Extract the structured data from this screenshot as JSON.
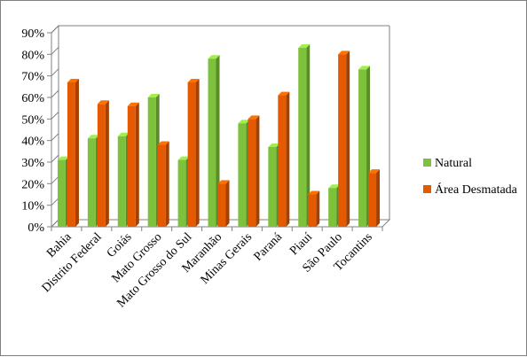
{
  "chart_data": {
    "type": "bar",
    "categories": [
      "Bahia",
      "Distrito Federal",
      "Goiás",
      "Mato Grosso",
      "Mato Grosso do Sul",
      "Maranhão",
      "Minas Gerais",
      "Paraná",
      "Piauí",
      "São Paulo",
      "Tocantins"
    ],
    "series": [
      {
        "name": "Natural",
        "color": "#7ec13c",
        "values": [
          31,
          41,
          42,
          60,
          31,
          78,
          48,
          37,
          83,
          18,
          73
        ]
      },
      {
        "name": "Área Desmatada",
        "color": "#e55a00",
        "values": [
          67,
          57,
          56,
          38,
          67,
          20,
          50,
          61,
          15,
          80,
          25
        ]
      }
    ],
    "yticks": [
      "0%",
      "10%",
      "20%",
      "30%",
      "40%",
      "50%",
      "60%",
      "70%",
      "80%",
      "90%"
    ],
    "ylim": [
      0,
      90
    ],
    "legend_position": "right",
    "grid": false,
    "style": "3d-clustered-column"
  }
}
